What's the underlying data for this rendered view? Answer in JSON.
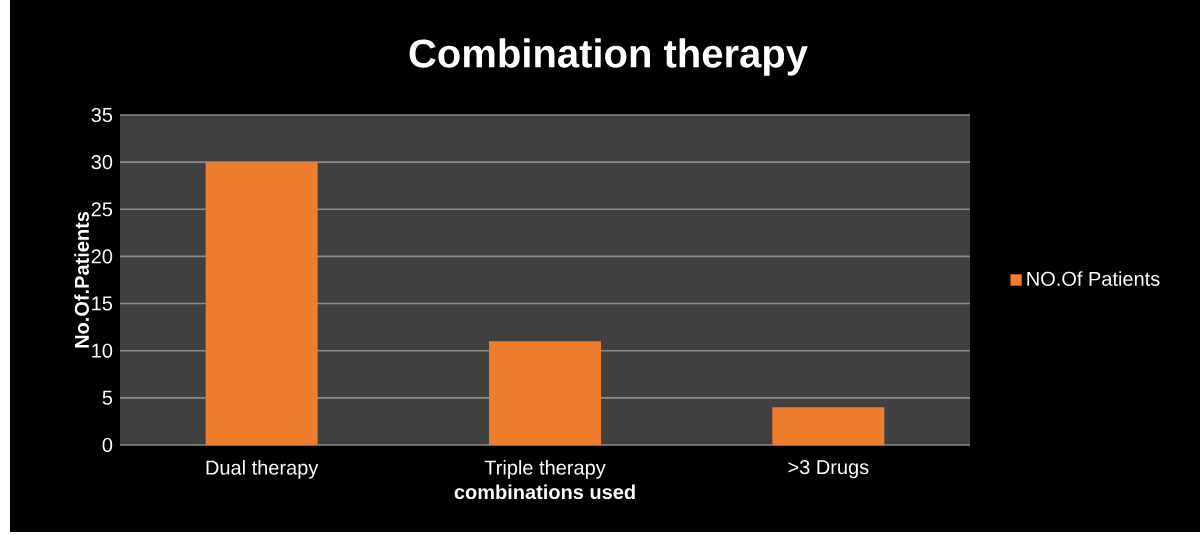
{
  "chart_data": {
    "type": "bar",
    "title": "Combination therapy",
    "xlabel": "combinations used",
    "ylabel": "No.Of.Patients",
    "categories": [
      "Dual therapy",
      "Triple therapy",
      ">3 Drugs"
    ],
    "series": [
      {
        "name": "NO.Of Patients",
        "color": "#ee7d2e",
        "values": [
          30,
          11,
          4
        ]
      }
    ],
    "ylim": [
      0,
      35
    ],
    "yticks": [
      0,
      5,
      10,
      15,
      20,
      25,
      30,
      35
    ],
    "grid": "y",
    "legend": "right"
  }
}
